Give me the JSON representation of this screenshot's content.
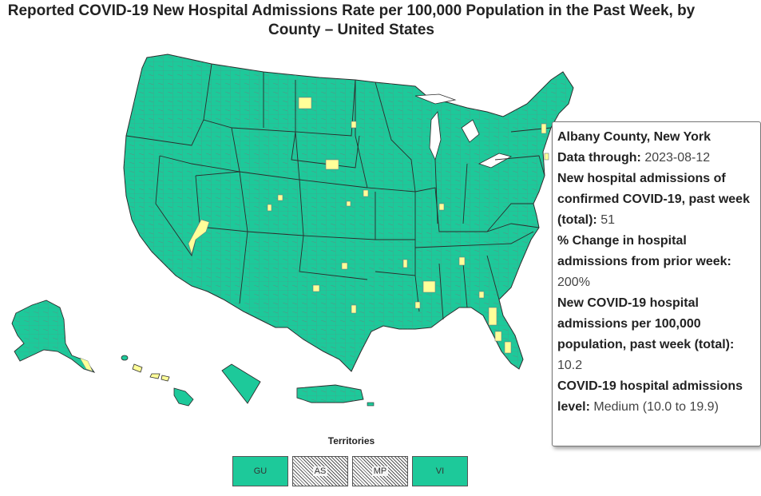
{
  "title": "Reported COVID-19 New Hospital Admissions Rate per 100,000 Population in the Past Week, by County – United States",
  "colors": {
    "land": "#1dc99a",
    "highlight": "#ffff99",
    "border": "#6e7f80",
    "state_border": "#2b2b2b",
    "hatch": "#555555"
  },
  "territories": {
    "label": "Territories",
    "items": [
      {
        "code": "GU",
        "status": "data"
      },
      {
        "code": "AS",
        "status": "no-data"
      },
      {
        "code": "MP",
        "status": "no-data"
      },
      {
        "code": "VI",
        "status": "data"
      }
    ]
  },
  "tooltip": {
    "county": "Albany County, New York",
    "data_through_label": "Data through:",
    "data_through": "2023-08-12",
    "admissions_label": "New hospital admissions of confirmed COVID-19, past week (total):",
    "admissions": "51",
    "pct_change_label": "% Change in hospital admissions from prior week:",
    "pct_change": "200%",
    "rate_label": "New COVID-19 hospital admissions per 100,000 population, past week (total):",
    "rate": "10.2",
    "level_label": "COVID-19 hospital admissions level:",
    "level": "Medium",
    "level_range": "(10.0 to 19.9)"
  }
}
